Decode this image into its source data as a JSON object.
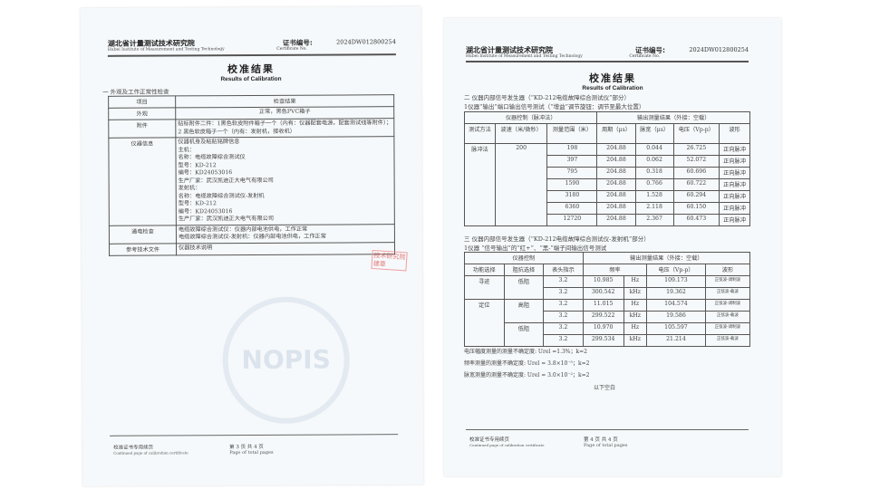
{
  "header": {
    "institute": "湖北省计量测试技术研究院",
    "institute_en": "Hubei Institute of Measurement and Testing Technology",
    "cert_label": "证书编号:",
    "cert_label_en": "Certificate No.",
    "cert_no": "2024DW012800254"
  },
  "title": "校准结果",
  "subtitle": "Results of Calibration",
  "page3": {
    "section": "一 外观及工作正常性检查",
    "watermark": "NOPIS",
    "stamp": [
      "技术研究院",
      "建章"
    ],
    "table": {
      "headers": [
        "项目",
        "检查结果"
      ],
      "rows": [
        {
          "label": "外观",
          "lines": [
            "正常，黑色PVC箱子"
          ]
        },
        {
          "label": "附件",
          "lines": [
            "贴标附件二件：1黑色软皮附件箱子一个（内有：仪器配套电源，配套测试线等附件）；",
            "2 黑色软皮箱子一个（内有：发射机，接收机）"
          ]
        },
        {
          "label": "仪器信息",
          "lines": [
            "仪器机身及粘贴铭牌信息",
            "主机：",
            "名称：电缆故障综合测试仪",
            "型号：KD-212",
            "编号：KD24053016",
            "生产厂家：武汉凯迪正大电气有限公司",
            "发射机：",
            "名称：电缆故障综合测试仪-发射机",
            "型号：KD-212",
            "编号：KD24053016",
            "生产厂家：武汉凯迪正大电气有限公司"
          ]
        },
        {
          "label": "通电检查",
          "lines": [
            "电缆故障综合测试仪：仪器内部电池供电，工作正常",
            "电缆故障综合测试仪-发射机：仪器内部电池供电，工作正常"
          ]
        },
        {
          "label": "参考技术文件",
          "lines": [
            "仪器技术说明"
          ]
        }
      ]
    },
    "footer": {
      "left": "校准证书专用续页",
      "left_en": "Continued page of calibration certificate",
      "page": "第 3 页 共 4 页",
      "page_en": "Page of total pages"
    }
  },
  "page4": {
    "section2": "二 仪器内部信号发生器（“KD-212电缆故障综合测试仪”部分）",
    "section2_sub": "1仪器“输出”端口输出信号测试（“增益”调节旋钮：调节至最大位置）",
    "table1": {
      "group1": "仪器控制（脉冲法）",
      "group2": "输出测量结果（外接：空载）",
      "headers": [
        "测试方法",
        "波速（米/微秒）",
        "测量范围（米）",
        "周期（μs）",
        "脉宽（μs）",
        "电压（Vp-p）",
        "波形"
      ],
      "method": "脉冲法",
      "speed": "200",
      "rows": [
        [
          "198",
          "204.88",
          "0.044",
          "26.725",
          "正向脉冲"
        ],
        [
          "397",
          "204.88",
          "0.062",
          "52.072",
          "正向脉冲"
        ],
        [
          "795",
          "204.88",
          "0.318",
          "60.696",
          "正向脉冲"
        ],
        [
          "1590",
          "204.88",
          "0.766",
          "60.722",
          "正向脉冲"
        ],
        [
          "3180",
          "204.88",
          "1.528",
          "60.294",
          "正向脉冲"
        ],
        [
          "6360",
          "204.88",
          "2.118",
          "60.150",
          "正向脉冲"
        ],
        [
          "12720",
          "204.88",
          "2.367",
          "60.473",
          "正向脉冲"
        ]
      ]
    },
    "section3": "三 仪器内部信号发生器（“KD-212电缆故障综合测试仪-发射机”部分）",
    "section3_sub": "1仪器 “信号输出”的“红+”、“黑-”端子间输出信号测试",
    "table2": {
      "group1": "仪器控制",
      "group2": "输出测量结果（外接：空载）",
      "headers": [
        "功能选择",
        "阻抗选择",
        "表头指示",
        "频率",
        "电压（Vp-p）",
        "波形"
      ],
      "rows": [
        {
          "func": "寻迹",
          "imp": "低阻",
          "ind": "3.2",
          "freq": "10.985",
          "unit": "Hz",
          "volt": "109.173",
          "wave": "正弦波-调制波"
        },
        {
          "func": "",
          "imp": "",
          "ind": "3.2",
          "freq": "300.542",
          "unit": "kHz",
          "volt": "19.362",
          "wave": "正弦波-载波"
        },
        {
          "func": "定位",
          "imp": "高阻",
          "ind": "3.2",
          "freq": "11.015",
          "unit": "Hz",
          "volt": "104.574",
          "wave": "正弦波-调制波"
        },
        {
          "func": "",
          "imp": "",
          "ind": "3.2",
          "freq": "299.522",
          "unit": "kHz",
          "volt": "19.586",
          "wave": "正弦波-载波"
        },
        {
          "func": "",
          "imp": "低阻",
          "ind": "3.2",
          "freq": "10.970",
          "unit": "Hz",
          "volt": "105.597",
          "wave": "正弦波-调制波"
        },
        {
          "func": "",
          "imp": "",
          "ind": "3.2",
          "freq": "299.534",
          "unit": "kHz",
          "volt": "21.214",
          "wave": "正弦波-载波"
        }
      ]
    },
    "uncertainty": [
      "电压幅度测量的测量不确定度: Urel =1.3%；k=2",
      "频率测量的测量不确定度: Urel = 3.8×10⁻⁵；k=2",
      "脉宽测量的测量不确定度: Urel = 3.0×10⁻²；k=2"
    ],
    "blank": "以下空白",
    "footer": {
      "left": "校准证书专用续页",
      "left_en": "Continued page of calibration certificate",
      "page": "第 4 页 共 4 页",
      "page_en": "Page of total pages"
    }
  }
}
